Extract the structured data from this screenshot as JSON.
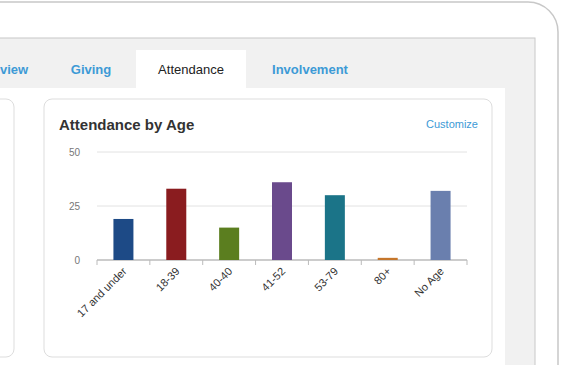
{
  "tabs": [
    {
      "label": "view",
      "active": false
    },
    {
      "label": "Giving",
      "active": false
    },
    {
      "label": "Attendance",
      "active": true
    },
    {
      "label": "Involvement",
      "active": false
    }
  ],
  "link": "Customize",
  "chart_data": {
    "type": "bar",
    "title": "Attendance by Age",
    "categories": [
      "17 and under",
      "18-39",
      "40-40",
      "41-52",
      "53-79",
      "80+",
      "No Age"
    ],
    "values": [
      19,
      33,
      15,
      36,
      30,
      1,
      32
    ],
    "colors": [
      "#1d4a86",
      "#8a1c1f",
      "#5b7e1f",
      "#6a4a8c",
      "#1b7488",
      "#c5762b",
      "#6a7fae"
    ],
    "ylim": [
      0,
      50
    ],
    "yticks": [
      0,
      25,
      50
    ],
    "grid": true
  }
}
